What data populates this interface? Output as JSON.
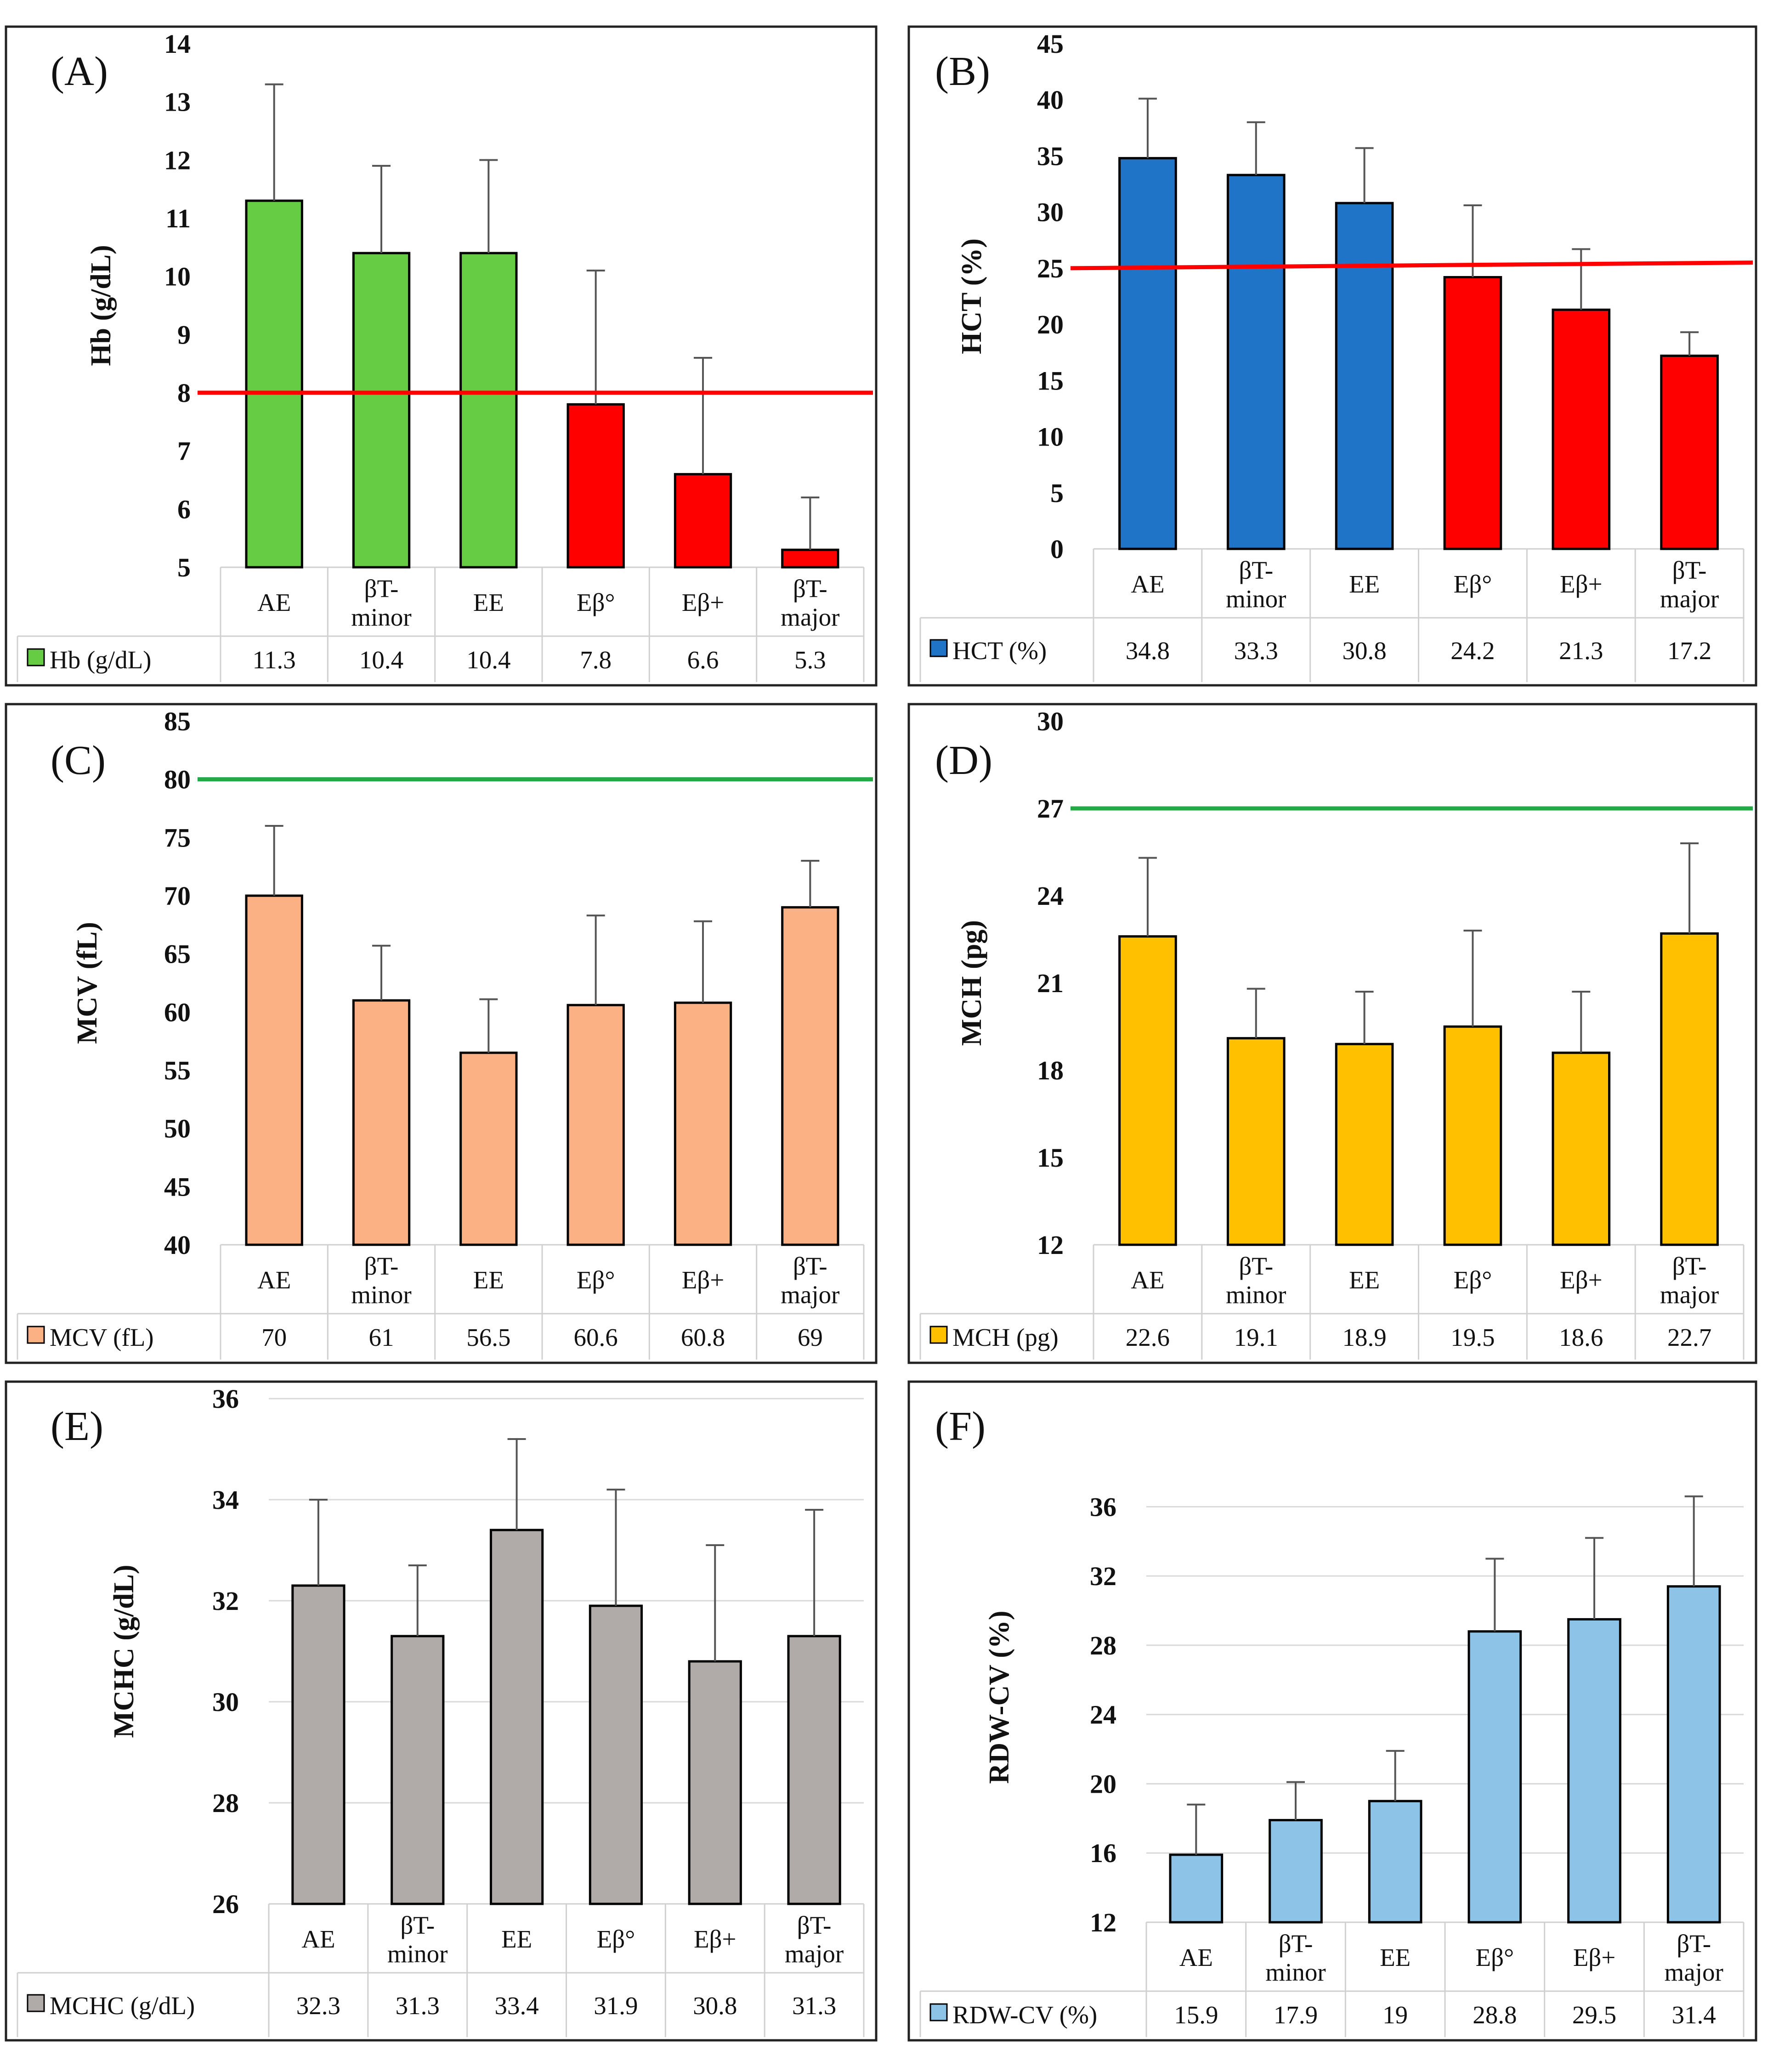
{
  "chart_data": [
    {
      "type": "bar",
      "panel": "(A)",
      "title": "",
      "ylabel": "Hb (g/dL)",
      "xlabel": "",
      "ylim": [
        5,
        14
      ],
      "yticks": [
        5,
        6,
        7,
        8,
        9,
        10,
        11,
        12,
        13,
        14
      ],
      "categories": [
        "AE",
        "βT-minor",
        "EE",
        "Eβ°",
        "Eβ+",
        "βT-major"
      ],
      "series": [
        {
          "name": "Hb (g/dL)",
          "values": [
            11.3,
            10.4,
            10.4,
            7.8,
            6.6,
            5.3
          ]
        }
      ],
      "value_labels": [
        "11.3",
        "10.4",
        "10.4",
        "7.8",
        "6.6",
        "5.3"
      ],
      "error_top": [
        13.3,
        11.9,
        12.0,
        10.1,
        8.6,
        6.2
      ],
      "bar_colors": [
        "#66cc44",
        "#66cc44",
        "#66cc44",
        "#ff0000",
        "#ff0000",
        "#ff0000"
      ],
      "legend_color": "#66cc44",
      "reference_line": {
        "from": 8,
        "to": 8,
        "color": "#ff0000"
      },
      "grid": false
    },
    {
      "type": "bar",
      "panel": "(B)",
      "title": "",
      "ylabel": "HCT (%)",
      "xlabel": "",
      "ylim": [
        0,
        45
      ],
      "yticks": [
        0,
        5,
        10,
        15,
        20,
        25,
        30,
        35,
        40,
        45
      ],
      "categories": [
        "AE",
        "βT-minor",
        "EE",
        "Eβ°",
        "Eβ+",
        "βT-major"
      ],
      "series": [
        {
          "name": "HCT (%)",
          "values": [
            34.8,
            33.3,
            30.8,
            24.2,
            21.3,
            17.2
          ]
        }
      ],
      "value_labels": [
        "34.8",
        "33.3",
        "30.8",
        "24.2",
        "21.3",
        "17.2"
      ],
      "error_top": [
        40.1,
        38.0,
        35.7,
        30.6,
        26.7,
        19.3
      ],
      "bar_colors": [
        "#1f74c8",
        "#1f74c8",
        "#1f74c8",
        "#ff0000",
        "#ff0000",
        "#ff0000"
      ],
      "legend_color": "#1f74c8",
      "reference_line": {
        "from": 25,
        "to": 25.5,
        "color": "#ff0000"
      },
      "grid": false
    },
    {
      "type": "bar",
      "panel": "(C)",
      "title": "",
      "ylabel": "MCV (fL)",
      "xlabel": "",
      "ylim": [
        40,
        85
      ],
      "yticks": [
        40,
        45,
        50,
        55,
        60,
        65,
        70,
        75,
        80,
        85
      ],
      "categories": [
        "AE",
        "βT-minor",
        "EE",
        "Eβ°",
        "Eβ+",
        "βT-major"
      ],
      "series": [
        {
          "name": "MCV (fL)",
          "values": [
            70,
            61,
            56.5,
            60.6,
            60.8,
            69
          ]
        }
      ],
      "value_labels": [
        "70",
        "61",
        "56.5",
        "60.6",
        "60.8",
        "69"
      ],
      "error_top": [
        76.0,
        65.7,
        61.1,
        68.3,
        67.8,
        73.0
      ],
      "bar_colors": [
        "#fbb183",
        "#fbb183",
        "#fbb183",
        "#fbb183",
        "#fbb183",
        "#fbb183"
      ],
      "legend_color": "#fbb183",
      "reference_line": {
        "from": 80,
        "to": 80,
        "color": "#22aa44"
      },
      "grid": false
    },
    {
      "type": "bar",
      "panel": "(D)",
      "title": "",
      "ylabel": "MCH (pg)",
      "xlabel": "",
      "ylim": [
        12,
        30
      ],
      "yticks": [
        12,
        15,
        18,
        21,
        24,
        27,
        30
      ],
      "categories": [
        "AE",
        "βT-minor",
        "EE",
        "Eβ°",
        "Eβ+",
        "βT-major"
      ],
      "series": [
        {
          "name": "MCH (pg)",
          "values": [
            22.6,
            19.1,
            18.9,
            19.5,
            18.6,
            22.7
          ]
        }
      ],
      "value_labels": [
        "22.6",
        "19.1",
        "18.9",
        "19.5",
        "18.6",
        "22.7"
      ],
      "error_top": [
        25.3,
        20.8,
        20.7,
        22.8,
        20.7,
        25.8
      ],
      "bar_colors": [
        "#ffc000",
        "#ffc000",
        "#ffc000",
        "#ffc000",
        "#ffc000",
        "#ffc000"
      ],
      "legend_color": "#ffc000",
      "reference_line": {
        "from": 27,
        "to": 27,
        "color": "#22aa44"
      },
      "grid": false
    },
    {
      "type": "bar",
      "panel": "(E)",
      "title": "",
      "ylabel": "MCHC (g/dL)",
      "xlabel": "",
      "ylim": [
        26,
        36
      ],
      "yticks": [
        26,
        28,
        30,
        32,
        34,
        36
      ],
      "categories": [
        "AE",
        "βT-minor",
        "EE",
        "Eβ°",
        "Eβ+",
        "βT-major"
      ],
      "series": [
        {
          "name": "MCHC (g/dL)",
          "values": [
            32.3,
            31.3,
            33.4,
            31.9,
            30.8,
            31.3
          ]
        }
      ],
      "value_labels": [
        "32.3",
        "31.3",
        "33.4",
        "31.9",
        "30.8",
        "31.3"
      ],
      "error_top": [
        34.0,
        32.7,
        35.2,
        34.2,
        33.1,
        33.8
      ],
      "bar_colors": [
        "#b0aba9",
        "#b0aba9",
        "#b0aba9",
        "#b0aba9",
        "#b0aba9",
        "#b0aba9"
      ],
      "legend_color": "#b0aba9",
      "reference_line": null,
      "grid": true
    },
    {
      "type": "bar",
      "panel": "(F)",
      "title": "",
      "ylabel": "RDW-CV (%)",
      "xlabel": "",
      "ylim": [
        12,
        38
      ],
      "yticks": [
        12,
        16,
        20,
        24,
        28,
        32,
        36
      ],
      "categories": [
        "AE",
        "βT-minor",
        "EE",
        "Eβ°",
        "Eβ+",
        "βT-major"
      ],
      "series": [
        {
          "name": "RDW-CV (%)",
          "values": [
            15.9,
            17.9,
            19,
            28.8,
            29.5,
            31.4
          ]
        }
      ],
      "value_labels": [
        "15.9",
        "17.9",
        "19",
        "28.8",
        "29.5",
        "31.4"
      ],
      "error_top": [
        18.8,
        20.1,
        21.9,
        33.0,
        34.2,
        36.6
      ],
      "bar_colors": [
        "#8ec3e8",
        "#8ec3e8",
        "#8ec3e8",
        "#8ec3e8",
        "#8ec3e8",
        "#8ec3e8"
      ],
      "legend_color": "#8ec3e8",
      "reference_line": null,
      "grid": true
    }
  ]
}
